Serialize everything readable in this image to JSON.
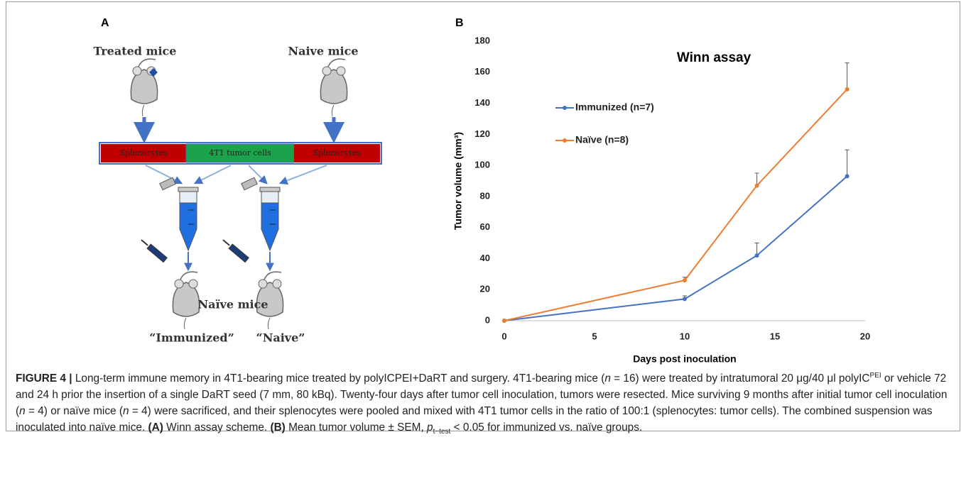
{
  "panel_a": {
    "label": "A",
    "treated": "Treated mice",
    "naive": "Naive mice",
    "segments": [
      "Splenocytes",
      "4T1 tumor cells",
      "Splenocytes"
    ],
    "recipients": "Naïve mice",
    "groups": [
      "“Immunized”",
      "“Naive”"
    ]
  },
  "chart_data": {
    "type": "line",
    "panel_label": "B",
    "title": "Winn assay",
    "x_label": "Days post inoculation",
    "y_label": "Tumor volume (mm³)",
    "x": [
      0,
      10,
      14,
      19
    ],
    "series": [
      {
        "name": "Immunized (n=7)",
        "color": "#4472c4",
        "values": [
          0,
          14,
          42,
          93
        ],
        "errors": [
          0,
          2,
          8,
          17
        ]
      },
      {
        "name": "Naïve (n=8)",
        "color": "#ed7d31",
        "values": [
          0,
          26,
          87,
          149
        ],
        "errors": [
          0,
          2,
          8,
          17
        ]
      }
    ],
    "xlim": [
      0,
      20
    ],
    "xticks": [
      0,
      5,
      10,
      15,
      20
    ],
    "ylim": [
      0,
      180
    ],
    "yticks": [
      0,
      20,
      40,
      60,
      80,
      100,
      120,
      140,
      160,
      180
    ],
    "grid": false
  },
  "caption": {
    "runs": [
      "FIGURE 4 |",
      " Long-term immune memory in 4T1-bearing mice treated by polyICPEI+DaRT and surgery. 4T1-bearing mice (",
      "n",
      " = 16) were treated by intratumoral 20 μg/40 μl polyIC",
      "PEI",
      " or vehicle 72 and 24 h prior the insertion of a single DaRT seed (7 mm, 80 kBq). Twenty-four days after tumor cell inoculation, tumors were resected. Mice surviving 9 months after initial tumor cell inoculation (",
      "n",
      " = 4) or naïve mice (",
      "n",
      " = 4) were sacrificed, and their splenocytes were pooled and mixed with 4T1 tumor cells in the ratio of 100:1 (splenocytes: tumor cells). The combined suspension was inoculated into naïve mice. ",
      "(A)",
      " Winn assay scheme. ",
      "(B)",
      " Mean tumor volume ± SEM, ",
      "p",
      "t−test",
      " < 0.05 for immunized vs. naïve groups."
    ]
  }
}
